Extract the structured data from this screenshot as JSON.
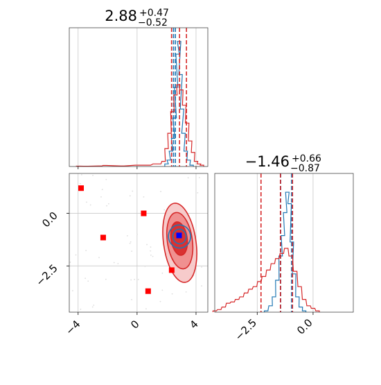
{
  "chart_data": [
    {
      "type": "histogram",
      "parameter": 0,
      "title": {
        "median": "2.88",
        "plus": "+0.47",
        "minus": "−0.52"
      },
      "xlim": [
        -4.6,
        4.8
      ],
      "gridlines_x": [
        -4,
        0,
        4
      ],
      "series": [
        {
          "color": "#1f77b4",
          "bins": [
            [
              2.0,
              0.02
            ],
            [
              2.15,
              0.05
            ],
            [
              2.3,
              0.12
            ],
            [
              2.45,
              0.22
            ],
            [
              2.55,
              0.38
            ],
            [
              2.65,
              0.62
            ],
            [
              2.75,
              0.88
            ],
            [
              2.85,
              0.98
            ],
            [
              2.95,
              0.72
            ],
            [
              3.05,
              0.45
            ],
            [
              3.15,
              0.26
            ],
            [
              3.3,
              0.12
            ],
            [
              3.5,
              0.05
            ],
            [
              3.7,
              0.01
            ]
          ],
          "quantiles": [
            2.47,
            2.6
          ]
        },
        {
          "color": "#d62728",
          "bins": [
            [
              -4.0,
              0.003
            ],
            [
              -3.5,
              0.002
            ],
            [
              -2.5,
              0.004
            ],
            [
              -2.2,
              0.008
            ],
            [
              -1.0,
              0.004
            ],
            [
              0.0,
              0.01
            ],
            [
              0.8,
              0.01
            ],
            [
              1.2,
              0.02
            ],
            [
              1.5,
              0.02
            ],
            [
              1.8,
              0.04
            ],
            [
              2.0,
              0.14
            ],
            [
              2.2,
              0.26
            ],
            [
              2.4,
              0.43
            ],
            [
              2.6,
              0.56
            ],
            [
              2.8,
              0.64
            ],
            [
              3.0,
              0.6
            ],
            [
              3.2,
              0.48
            ],
            [
              3.4,
              0.34
            ],
            [
              3.6,
              0.2
            ],
            [
              3.8,
              0.11
            ],
            [
              4.0,
              0.04
            ],
            [
              4.2,
              0.02
            ],
            [
              4.4,
              0.01
            ]
          ],
          "quantiles": [
            2.34,
            2.88,
            3.35
          ]
        }
      ]
    },
    {
      "type": "histogram",
      "parameter": 1,
      "title": {
        "median": "−1.46",
        "plus": "+0.66",
        "minus": "−0.87"
      },
      "xlim": [
        -4.4,
        1.8
      ],
      "ticks": [
        {
          "value": -2.5,
          "label": "−2.5"
        },
        {
          "value": 0.0,
          "label": "0.0"
        }
      ],
      "gridlines_x": [
        -2.5,
        0.0
      ],
      "series": [
        {
          "color": "#1f77b4",
          "bins": [
            [
              -2.1,
              0.01
            ],
            [
              -1.9,
              0.05
            ],
            [
              -1.75,
              0.12
            ],
            [
              -1.6,
              0.25
            ],
            [
              -1.45,
              0.44
            ],
            [
              -1.35,
              0.6
            ],
            [
              -1.25,
              0.78
            ],
            [
              -1.15,
              0.94
            ],
            [
              -1.05,
              0.85
            ],
            [
              -0.95,
              0.55
            ],
            [
              -0.85,
              0.3
            ],
            [
              -0.7,
              0.12
            ],
            [
              -0.55,
              0.04
            ],
            [
              -0.4,
              0.01
            ]
          ],
          "quantiles": [
            -1.45,
            -0.96
          ]
        },
        {
          "color": "#d62728",
          "bins": [
            [
              -4.4,
              0.01
            ],
            [
              -4.2,
              0.02
            ],
            [
              -4.0,
              0.04
            ],
            [
              -3.8,
              0.07
            ],
            [
              -3.6,
              0.08
            ],
            [
              -3.4,
              0.1
            ],
            [
              -3.2,
              0.12
            ],
            [
              -3.0,
              0.15
            ],
            [
              -2.8,
              0.18
            ],
            [
              -2.6,
              0.2
            ],
            [
              -2.4,
              0.24
            ],
            [
              -2.2,
              0.28
            ],
            [
              -2.0,
              0.33
            ],
            [
              -1.8,
              0.38
            ],
            [
              -1.6,
              0.42
            ],
            [
              -1.4,
              0.46
            ],
            [
              -1.2,
              0.5
            ],
            [
              -1.0,
              0.44
            ],
            [
              -0.8,
              0.32
            ],
            [
              -0.6,
              0.2
            ],
            [
              -0.4,
              0.1
            ],
            [
              -0.2,
              0.05
            ],
            [
              0.0,
              0.03
            ],
            [
              0.2,
              0.01
            ]
          ],
          "quantiles": [
            -2.33,
            -1.46,
            -0.92
          ]
        }
      ]
    },
    {
      "type": "scatter",
      "xlim": [
        -4.6,
        4.8
      ],
      "ylim": [
        -4.7,
        1.9
      ],
      "xticks": [
        {
          "value": -4,
          "label": "−4"
        },
        {
          "value": 0,
          "label": "0"
        },
        {
          "value": 4,
          "label": "4"
        }
      ],
      "yticks": [
        {
          "value": 0.0,
          "label": "0.0"
        },
        {
          "value": -2.5,
          "label": "−2.5"
        }
      ],
      "gridlines_x": [
        -4,
        0,
        4
      ],
      "gridlines_y": [
        0.0,
        -2.5
      ],
      "contours": [
        {
          "color": "#d62728",
          "fill": "#f6c5c5",
          "center": [
            2.9,
            -1.4
          ],
          "rx": 1.1,
          "ry": 1.9
        },
        {
          "color": "#d62728",
          "fill": "#ee8a8a",
          "center": [
            2.9,
            -1.3
          ],
          "rx": 0.85,
          "ry": 1.35
        },
        {
          "color": "#d62728",
          "fill": "#d62728",
          "center": [
            2.85,
            -1.2
          ],
          "rx": 0.55,
          "ry": 0.8
        },
        {
          "color": "#1f77b4",
          "fill": "none",
          "center": [
            2.88,
            -1.1
          ],
          "rx": 0.75,
          "ry": 0.55
        },
        {
          "color": "#1f77b4",
          "fill": "none",
          "center": [
            2.88,
            -1.1
          ],
          "rx": 0.45,
          "ry": 0.35
        }
      ],
      "red_markers": [
        [
          -3.8,
          1.2
        ],
        [
          -2.3,
          -1.15
        ],
        [
          0.45,
          0.0
        ],
        [
          0.75,
          -3.7
        ],
        [
          2.35,
          -2.7
        ]
      ],
      "blue_marker": [
        2.85,
        -1.05
      ],
      "red_marker_color": "#ff0000",
      "blue_marker_color": "#0000ff"
    }
  ]
}
